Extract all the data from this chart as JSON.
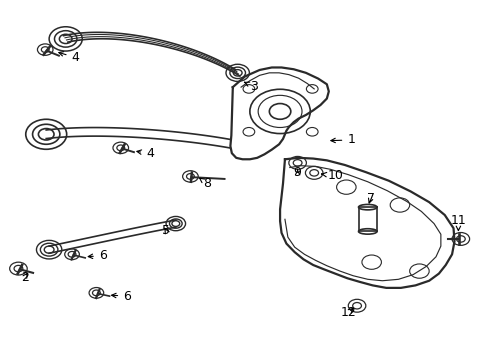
{
  "bg_color": "#ffffff",
  "line_color": "#2a2a2a",
  "label_color": "#000000",
  "lw_main": 1.2,
  "lw_thick": 1.6,
  "label_fontsize": 9
}
